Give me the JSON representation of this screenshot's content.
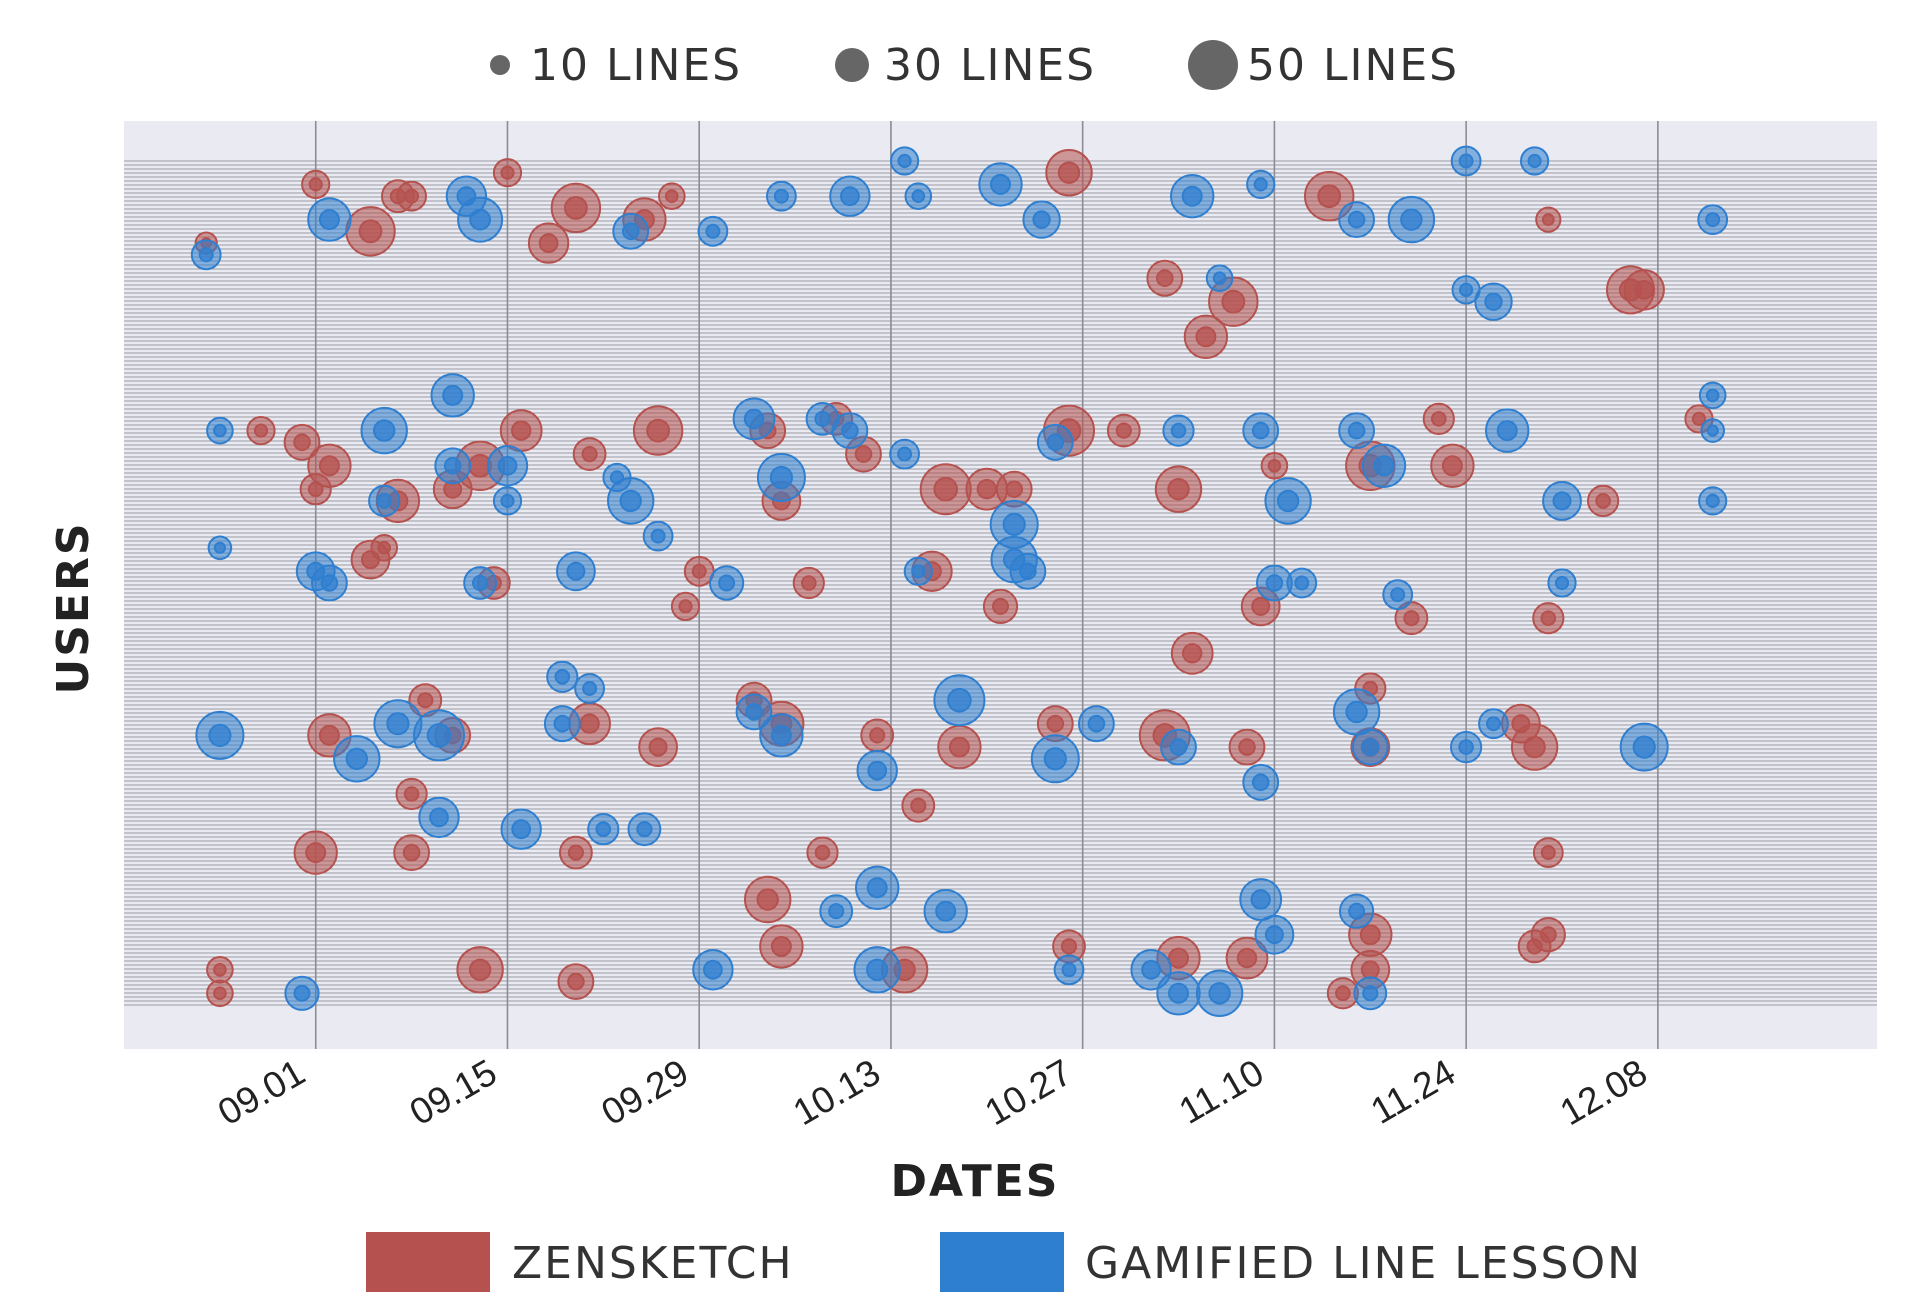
{
  "chart_data": {
    "type": "scatter",
    "xlabel": "DATES",
    "ylabel": "USERS",
    "x_tick_labels": [
      "09.01",
      "09.15",
      "09.29",
      "10.13",
      "10.27",
      "11.10",
      "11.24",
      "12.08"
    ],
    "x_ticks": [
      "2017-09-01",
      "2017-09-15",
      "2017-09-29",
      "2017-10-13",
      "2017-10-27",
      "2017-11-10",
      "2017-11-24",
      "2017-12-08"
    ],
    "xlim": [
      "2017-08-18",
      "2017-12-24"
    ],
    "ylim": [
      0,
      72
    ],
    "grid": true,
    "y_tick_labels_visible": false,
    "size_legend": {
      "position": "top",
      "entries": [
        {
          "label": "10 LINES",
          "lines": 10
        },
        {
          "label": "30 LINES",
          "lines": 30
        },
        {
          "label": "50 LINES",
          "lines": 50
        }
      ]
    },
    "color_legend": {
      "position": "bottom",
      "entries": [
        {
          "label": "ZENSKETCH",
          "color": "#b5524f"
        },
        {
          "label": "GAMIFIED LINE LESSON",
          "color": "#2f7fd0"
        }
      ]
    },
    "colors": {
      "ZENSKETCH": "#b5524f",
      "GAMIFIED LINE LESSON": "#2f7fd0",
      "background": "#eaeaf2"
    },
    "series": [
      {
        "name": "ZENSKETCH",
        "points": [
          [
            "2017-09-01",
            70,
            20
          ],
          [
            "2017-09-07",
            69,
            26
          ],
          [
            "2017-09-08",
            69,
            22
          ],
          [
            "2017-09-15",
            71,
            20
          ],
          [
            "2017-09-20",
            68,
            48
          ],
          [
            "2017-09-25",
            67,
            40
          ],
          [
            "2017-09-27",
            69,
            18
          ],
          [
            "2017-10-26",
            71,
            44
          ],
          [
            "2017-11-14",
            69,
            48
          ],
          [
            "2017-11-30",
            67,
            16
          ],
          [
            "2017-12-06",
            61,
            46
          ],
          [
            "2017-12-07",
            61,
            36
          ],
          [
            "2017-11-02",
            62,
            30
          ],
          [
            "2017-11-07",
            60,
            48
          ],
          [
            "2017-11-05",
            57,
            40
          ],
          [
            "2017-08-24",
            65,
            12
          ],
          [
            "2017-09-05",
            66,
            48
          ],
          [
            "2017-09-18",
            65,
            36
          ],
          [
            "2017-08-31",
            48,
            30
          ],
          [
            "2017-09-02",
            46,
            40
          ],
          [
            "2017-09-13",
            46,
            48
          ],
          [
            "2017-09-16",
            49,
            38
          ],
          [
            "2017-09-21",
            47,
            26
          ],
          [
            "2017-09-26",
            49,
            48
          ],
          [
            "2017-10-04",
            49,
            30
          ],
          [
            "2017-10-09",
            50,
            26
          ],
          [
            "2017-10-11",
            47,
            30
          ],
          [
            "2017-10-17",
            44,
            50
          ],
          [
            "2017-10-20",
            44,
            38
          ],
          [
            "2017-10-26",
            49,
            50
          ],
          [
            "2017-10-30",
            49,
            26
          ],
          [
            "2017-11-03",
            44,
            44
          ],
          [
            "2017-11-10",
            46,
            18
          ],
          [
            "2017-11-17",
            46,
            48
          ],
          [
            "2017-11-23",
            46,
            40
          ],
          [
            "2017-11-22",
            50,
            24
          ],
          [
            "2017-09-01",
            44,
            24
          ],
          [
            "2017-09-07",
            43,
            40
          ],
          [
            "2017-09-11",
            44,
            34
          ],
          [
            "2017-10-05",
            43,
            34
          ],
          [
            "2017-10-22",
            44,
            30
          ],
          [
            "2017-12-04",
            43,
            24
          ],
          [
            "2017-12-11",
            50,
            20
          ],
          [
            "2017-08-28",
            49,
            20
          ],
          [
            "2017-09-05",
            38,
            34
          ],
          [
            "2017-09-14",
            36,
            26
          ],
          [
            "2017-09-29",
            37,
            22
          ],
          [
            "2017-09-28",
            34,
            20
          ],
          [
            "2017-10-16",
            37,
            36
          ],
          [
            "2017-10-21",
            34,
            28
          ],
          [
            "2017-11-04",
            30,
            38
          ],
          [
            "2017-11-09",
            34,
            34
          ],
          [
            "2017-11-20",
            33,
            26
          ],
          [
            "2017-11-30",
            33,
            24
          ],
          [
            "2017-09-06",
            39,
            18
          ],
          [
            "2017-10-07",
            36,
            24
          ],
          [
            "2017-09-02",
            23,
            40
          ],
          [
            "2017-09-11",
            23,
            30
          ],
          [
            "2017-09-21",
            24,
            38
          ],
          [
            "2017-09-26",
            22,
            34
          ],
          [
            "2017-10-05",
            24,
            42
          ],
          [
            "2017-10-12",
            23,
            26
          ],
          [
            "2017-10-18",
            22,
            40
          ],
          [
            "2017-10-25",
            24,
            30
          ],
          [
            "2017-11-02",
            23,
            50
          ],
          [
            "2017-11-08",
            22,
            30
          ],
          [
            "2017-11-17",
            22,
            34
          ],
          [
            "2017-11-28",
            24,
            34
          ],
          [
            "2017-11-29",
            22,
            44
          ],
          [
            "2017-10-03",
            26,
            30
          ],
          [
            "2017-09-09",
            26,
            26
          ],
          [
            "2017-11-17",
            27,
            24
          ],
          [
            "2017-09-01",
            13,
            40
          ],
          [
            "2017-09-08",
            13,
            30
          ],
          [
            "2017-09-13",
            3,
            44
          ],
          [
            "2017-09-20",
            13,
            26
          ],
          [
            "2017-10-04",
            9,
            44
          ],
          [
            "2017-10-14",
            3,
            44
          ],
          [
            "2017-10-26",
            5,
            26
          ],
          [
            "2017-11-03",
            4,
            40
          ],
          [
            "2017-11-08",
            4,
            38
          ],
          [
            "2017-11-17",
            6,
            40
          ],
          [
            "2017-11-29",
            5,
            26
          ],
          [
            "2017-09-20",
            2,
            30
          ],
          [
            "2017-10-05",
            5,
            40
          ],
          [
            "2017-11-17",
            3,
            34
          ],
          [
            "2017-08-25",
            3,
            18
          ],
          [
            "2017-08-25",
            1,
            18
          ],
          [
            "2017-11-15",
            1,
            24
          ],
          [
            "2017-10-08",
            13,
            24
          ],
          [
            "2017-11-30",
            13,
            22
          ],
          [
            "2017-11-30",
            6,
            28
          ],
          [
            "2017-10-15",
            17,
            26
          ],
          [
            "2017-09-08",
            18,
            24
          ]
        ]
      },
      {
        "name": "GAMIFIED LINE LESSON",
        "points": [
          [
            "2017-09-12",
            69,
            36
          ],
          [
            "2017-09-13",
            67,
            42
          ],
          [
            "2017-09-02",
            67,
            40
          ],
          [
            "2017-09-24",
            66,
            30
          ],
          [
            "2017-10-05",
            69,
            22
          ],
          [
            "2017-10-10",
            69,
            36
          ],
          [
            "2017-10-14",
            72,
            20
          ],
          [
            "2017-10-21",
            70,
            40
          ],
          [
            "2017-10-24",
            67,
            32
          ],
          [
            "2017-11-04",
            69,
            40
          ],
          [
            "2017-11-09",
            70,
            20
          ],
          [
            "2017-11-16",
            67,
            30
          ],
          [
            "2017-11-20",
            67,
            44
          ],
          [
            "2017-11-24",
            72,
            22
          ],
          [
            "2017-11-29",
            72,
            20
          ],
          [
            "2017-08-24",
            64,
            22
          ],
          [
            "2017-11-24",
            61,
            20
          ],
          [
            "2017-11-26",
            60,
            32
          ],
          [
            "2017-12-12",
            67,
            22
          ],
          [
            "2017-09-30",
            66,
            22
          ],
          [
            "2017-10-15",
            69,
            18
          ],
          [
            "2017-11-06",
            62,
            18
          ],
          [
            "2017-09-06",
            49,
            44
          ],
          [
            "2017-09-11",
            46,
            30
          ],
          [
            "2017-09-11",
            52,
            40
          ],
          [
            "2017-09-15",
            46,
            36
          ],
          [
            "2017-09-23",
            45,
            20
          ],
          [
            "2017-09-24",
            43,
            44
          ],
          [
            "2017-10-03",
            50,
            38
          ],
          [
            "2017-10-05",
            45,
            46
          ],
          [
            "2017-10-08",
            50,
            26
          ],
          [
            "2017-10-10",
            49,
            30
          ],
          [
            "2017-10-14",
            47,
            22
          ],
          [
            "2017-10-22",
            41,
            46
          ],
          [
            "2017-10-25",
            48,
            30
          ],
          [
            "2017-11-03",
            49,
            24
          ],
          [
            "2017-11-09",
            49,
            30
          ],
          [
            "2017-11-11",
            43,
            44
          ],
          [
            "2017-11-16",
            49,
            30
          ],
          [
            "2017-11-18",
            46,
            40
          ],
          [
            "2017-11-27",
            49,
            40
          ],
          [
            "2017-12-01",
            43,
            34
          ],
          [
            "2017-12-12",
            43,
            20
          ],
          [
            "2017-12-12",
            49,
            14
          ],
          [
            "2017-12-12",
            52,
            18
          ],
          [
            "2017-08-25",
            49,
            18
          ],
          [
            "2017-09-06",
            43,
            24
          ],
          [
            "2017-09-15",
            43,
            20
          ],
          [
            "2017-09-01",
            37,
            34
          ],
          [
            "2017-09-02",
            36,
            30
          ],
          [
            "2017-09-13",
            36,
            26
          ],
          [
            "2017-09-20",
            37,
            34
          ],
          [
            "2017-09-26",
            40,
            22
          ],
          [
            "2017-10-01",
            36,
            28
          ],
          [
            "2017-10-15",
            37,
            20
          ],
          [
            "2017-10-22",
            38,
            44
          ],
          [
            "2017-10-23",
            37,
            30
          ],
          [
            "2017-11-10",
            36,
            30
          ],
          [
            "2017-11-12",
            36,
            22
          ],
          [
            "2017-11-19",
            35,
            22
          ],
          [
            "2017-08-25",
            39,
            14
          ],
          [
            "2017-12-01",
            36,
            20
          ],
          [
            "2017-08-25",
            23,
            46
          ],
          [
            "2017-09-04",
            21,
            44
          ],
          [
            "2017-09-07",
            24,
            46
          ],
          [
            "2017-09-10",
            23,
            50
          ],
          [
            "2017-09-19",
            24,
            30
          ],
          [
            "2017-09-21",
            27,
            22
          ],
          [
            "2017-10-03",
            25,
            30
          ],
          [
            "2017-10-05",
            23,
            40
          ],
          [
            "2017-10-12",
            20,
            36
          ],
          [
            "2017-10-18",
            26,
            50
          ],
          [
            "2017-10-25",
            21,
            46
          ],
          [
            "2017-10-28",
            24,
            30
          ],
          [
            "2017-11-03",
            22,
            30
          ],
          [
            "2017-11-09",
            19,
            30
          ],
          [
            "2017-11-16",
            25,
            44
          ],
          [
            "2017-11-17",
            22,
            30
          ],
          [
            "2017-11-24",
            22,
            24
          ],
          [
            "2017-11-26",
            24,
            22
          ],
          [
            "2017-12-07",
            22,
            46
          ],
          [
            "2017-09-19",
            28,
            24
          ],
          [
            "2017-09-10",
            16,
            36
          ],
          [
            "2017-09-16",
            15,
            36
          ],
          [
            "2017-09-22",
            15,
            24
          ],
          [
            "2017-09-30",
            3,
            36
          ],
          [
            "2017-10-12",
            3,
            44
          ],
          [
            "2017-10-17",
            8,
            40
          ],
          [
            "2017-10-26",
            3,
            22
          ],
          [
            "2017-11-03",
            1,
            40
          ],
          [
            "2017-11-06",
            1,
            44
          ],
          [
            "2017-11-09",
            9,
            38
          ],
          [
            "2017-11-10",
            6,
            34
          ],
          [
            "2017-11-17",
            1,
            26
          ],
          [
            "2017-10-12",
            10,
            40
          ],
          [
            "2017-08-31",
            1,
            28
          ],
          [
            "2017-09-25",
            15,
            26
          ],
          [
            "2017-11-01",
            3,
            36
          ],
          [
            "2017-10-09",
            8,
            26
          ],
          [
            "2017-11-16",
            8,
            28
          ]
        ]
      }
    ]
  }
}
